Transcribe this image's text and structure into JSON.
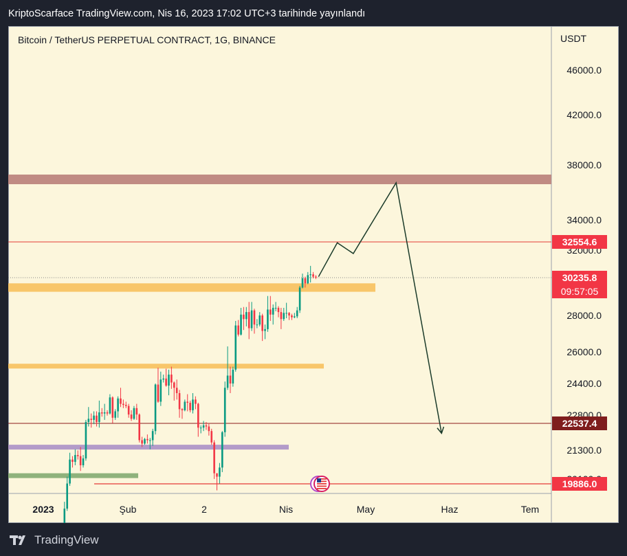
{
  "header": {
    "published": "KriptoScarface TradingView.com, Nis 16, 2023 17:02 UTC+3 tarihinde yayınlandı"
  },
  "symbol": "Bitcoin / TetherUS PERPETUAL CONTRACT, 1G, BINANCE",
  "axis_currency": "USDT",
  "footer": {
    "brand": "TradingView"
  },
  "colors": {
    "background": "#fcf6dc",
    "up": "#089981",
    "down": "#f23645",
    "resistance_zone": "#c08b83",
    "support_zone": "#f8c66a",
    "purple_zone": "#b39bc9",
    "green_zone": "#8fb27c",
    "level_line": "#e53935",
    "projection": "#1b3b2a"
  },
  "chart_data": {
    "type": "candlestick",
    "x_ticks": [
      "2023",
      "Şub",
      "2",
      "Nis",
      "May",
      "Haz",
      "Tem"
    ],
    "y_ticks": [
      46000,
      42000,
      38000,
      34000,
      32000,
      28000,
      26000,
      24400,
      22800,
      21300,
      20100
    ],
    "price_labels": [
      {
        "id": "resistance",
        "text": "32554.6",
        "value": 32554.6
      },
      {
        "id": "last",
        "text": "30235.8",
        "value": 30235.8,
        "countdown": "09:57:05"
      },
      {
        "id": "support",
        "text": "22537.4",
        "value": 22537.4
      },
      {
        "id": "low",
        "text": "19886.0",
        "value": 19886.0
      }
    ],
    "zones": [
      {
        "id": "resistance-zone",
        "from": 36600,
        "to": 37300
      },
      {
        "id": "support-zone-upper",
        "from": 29400,
        "to": 29900
      },
      {
        "id": "support-zone-lower",
        "from": 25200,
        "to": 25400
      },
      {
        "id": "purple-zone",
        "from": 21450,
        "to": 21600
      },
      {
        "id": "green-zone",
        "from": 20150,
        "to": 20350
      }
    ],
    "projection_path": [
      {
        "date": "2023-04-17",
        "price": 30300
      },
      {
        "date": "2023-04-24",
        "price": 32500
      },
      {
        "date": "2023-04-30",
        "price": 31800
      },
      {
        "date": "2023-05-16",
        "price": 36700
      },
      {
        "date": "2023-06-02",
        "price": 22100
      }
    ],
    "candles": [
      {
        "date": "2023-01-05",
        "open": 16800,
        "close": 16900,
        "high": 16950,
        "low": 16750
      },
      {
        "date": "2023-01-07",
        "open": 16900,
        "close": 17000,
        "high": 17050,
        "low": 16850
      },
      {
        "date": "2023-01-09",
        "open": 17150,
        "close": 17200,
        "high": 17300,
        "low": 17100
      },
      {
        "date": "2023-01-10",
        "open": 17200,
        "close": 17400,
        "high": 17480,
        "low": 17150
      },
      {
        "date": "2023-01-11",
        "open": 17400,
        "close": 17900,
        "high": 18000,
        "low": 17350
      },
      {
        "date": "2023-01-12",
        "open": 17900,
        "close": 18800,
        "high": 19100,
        "low": 17850
      },
      {
        "date": "2023-01-13",
        "open": 18800,
        "close": 19900,
        "high": 20200,
        "low": 18700
      },
      {
        "date": "2023-01-14",
        "open": 19900,
        "close": 20950,
        "high": 21250,
        "low": 19800
      },
      {
        "date": "2023-01-15",
        "open": 20950,
        "close": 20850,
        "high": 21100,
        "low": 20600
      },
      {
        "date": "2023-01-16",
        "open": 20850,
        "close": 21150,
        "high": 21400,
        "low": 20700
      },
      {
        "date": "2023-01-17",
        "open": 21150,
        "close": 21100,
        "high": 21350,
        "low": 20950
      },
      {
        "date": "2023-01-18",
        "open": 21100,
        "close": 20700,
        "high": 21500,
        "low": 20450
      },
      {
        "date": "2023-01-19",
        "open": 20700,
        "close": 21000,
        "high": 21150,
        "low": 20600
      },
      {
        "date": "2023-01-20",
        "open": 21000,
        "close": 22600,
        "high": 22700,
        "low": 20900
      },
      {
        "date": "2023-01-21",
        "open": 22600,
        "close": 22750,
        "high": 23300,
        "low": 22400
      },
      {
        "date": "2023-01-22",
        "open": 22750,
        "close": 22700,
        "high": 23000,
        "low": 22350
      },
      {
        "date": "2023-01-23",
        "open": 22700,
        "close": 22900,
        "high": 23100,
        "low": 22500
      },
      {
        "date": "2023-01-24",
        "open": 22900,
        "close": 22600,
        "high": 23100,
        "low": 22400
      },
      {
        "date": "2023-01-25",
        "open": 22600,
        "close": 23050,
        "high": 23600,
        "low": 22350
      },
      {
        "date": "2023-01-26",
        "open": 23050,
        "close": 23000,
        "high": 23250,
        "low": 22850
      },
      {
        "date": "2023-01-27",
        "open": 23000,
        "close": 23050,
        "high": 23450,
        "low": 22700
      },
      {
        "date": "2023-01-28",
        "open": 23050,
        "close": 23000,
        "high": 23150,
        "low": 22900
      },
      {
        "date": "2023-01-29",
        "open": 23000,
        "close": 23750,
        "high": 23900,
        "low": 22950
      },
      {
        "date": "2023-01-30",
        "open": 23750,
        "close": 22800,
        "high": 23800,
        "low": 22550
      },
      {
        "date": "2023-01-31",
        "open": 22800,
        "close": 23100,
        "high": 23200,
        "low": 22700
      },
      {
        "date": "2023-02-01",
        "open": 23100,
        "close": 23700,
        "high": 23800,
        "low": 22800
      },
      {
        "date": "2023-02-02",
        "open": 23700,
        "close": 23450,
        "high": 24200,
        "low": 23300
      },
      {
        "date": "2023-02-03",
        "open": 23450,
        "close": 23400,
        "high": 23650,
        "low": 23250
      },
      {
        "date": "2023-02-04",
        "open": 23400,
        "close": 23350,
        "high": 23550,
        "low": 23250
      },
      {
        "date": "2023-02-05",
        "open": 23350,
        "close": 22950,
        "high": 23450,
        "low": 22800
      },
      {
        "date": "2023-02-06",
        "open": 22950,
        "close": 22750,
        "high": 23150,
        "low": 22650
      },
      {
        "date": "2023-02-07",
        "open": 22750,
        "close": 23250,
        "high": 23350,
        "low": 22700
      },
      {
        "date": "2023-02-08",
        "open": 23250,
        "close": 22950,
        "high": 23450,
        "low": 22700
      },
      {
        "date": "2023-02-09",
        "open": 22950,
        "close": 21800,
        "high": 23000,
        "low": 21700
      },
      {
        "date": "2023-02-10",
        "open": 21800,
        "close": 21650,
        "high": 21950,
        "low": 21500
      },
      {
        "date": "2023-02-11",
        "open": 21650,
        "close": 21850,
        "high": 21900,
        "low": 21600
      },
      {
        "date": "2023-02-12",
        "open": 21850,
        "close": 21800,
        "high": 22050,
        "low": 21650
      },
      {
        "date": "2023-02-13",
        "open": 21800,
        "close": 21800,
        "high": 21900,
        "low": 21400
      },
      {
        "date": "2023-02-14",
        "open": 21800,
        "close": 22200,
        "high": 22300,
        "low": 21550
      },
      {
        "date": "2023-02-15",
        "open": 22200,
        "close": 24350,
        "high": 24400,
        "low": 22050
      },
      {
        "date": "2023-02-16",
        "open": 24350,
        "close": 23550,
        "high": 25200,
        "low": 23500
      },
      {
        "date": "2023-02-17",
        "open": 23550,
        "close": 24600,
        "high": 25000,
        "low": 23350
      },
      {
        "date": "2023-02-18",
        "open": 24600,
        "close": 24650,
        "high": 24850,
        "low": 24450
      },
      {
        "date": "2023-02-19",
        "open": 24650,
        "close": 24300,
        "high": 25150,
        "low": 24250
      },
      {
        "date": "2023-02-20",
        "open": 24300,
        "close": 24850,
        "high": 25100,
        "low": 23850
      },
      {
        "date": "2023-02-21",
        "open": 24850,
        "close": 24450,
        "high": 25250,
        "low": 24150
      },
      {
        "date": "2023-02-22",
        "open": 24450,
        "close": 24200,
        "high": 24500,
        "low": 23600
      },
      {
        "date": "2023-02-23",
        "open": 24200,
        "close": 23950,
        "high": 24600,
        "low": 23650
      },
      {
        "date": "2023-02-24",
        "open": 23950,
        "close": 23200,
        "high": 24100,
        "low": 22800
      },
      {
        "date": "2023-02-25",
        "open": 23200,
        "close": 23150,
        "high": 23250,
        "low": 22750
      },
      {
        "date": "2023-02-26",
        "open": 23150,
        "close": 23550,
        "high": 23650,
        "low": 23100
      },
      {
        "date": "2023-02-27",
        "open": 23550,
        "close": 23500,
        "high": 23900,
        "low": 23100
      },
      {
        "date": "2023-02-28",
        "open": 23500,
        "close": 23150,
        "high": 23600,
        "low": 23050
      },
      {
        "date": "2023-03-01",
        "open": 23150,
        "close": 23650,
        "high": 23950,
        "low": 23000
      },
      {
        "date": "2023-03-02",
        "open": 23650,
        "close": 23450,
        "high": 23800,
        "low": 23200
      },
      {
        "date": "2023-03-03",
        "open": 23450,
        "close": 22350,
        "high": 23500,
        "low": 21950
      },
      {
        "date": "2023-03-04",
        "open": 22350,
        "close": 22350,
        "high": 22450,
        "low": 22100
      },
      {
        "date": "2023-03-05",
        "open": 22350,
        "close": 22450,
        "high": 22650,
        "low": 22200
      },
      {
        "date": "2023-03-06",
        "open": 22450,
        "close": 22400,
        "high": 22600,
        "low": 22250
      },
      {
        "date": "2023-03-07",
        "open": 22400,
        "close": 22200,
        "high": 22550,
        "low": 22000
      },
      {
        "date": "2023-03-08",
        "open": 22200,
        "close": 21700,
        "high": 22300,
        "low": 21600
      },
      {
        "date": "2023-03-09",
        "open": 21700,
        "close": 20350,
        "high": 21800,
        "low": 20100
      },
      {
        "date": "2023-03-10",
        "open": 20350,
        "close": 20200,
        "high": 20350,
        "low": 19600
      },
      {
        "date": "2023-03-11",
        "open": 20200,
        "close": 20600,
        "high": 20800,
        "low": 19900
      },
      {
        "date": "2023-03-12",
        "open": 20600,
        "close": 22150,
        "high": 22200,
        "low": 20400
      },
      {
        "date": "2023-03-13",
        "open": 22150,
        "close": 24200,
        "high": 24500,
        "low": 21950
      },
      {
        "date": "2023-03-14",
        "open": 24200,
        "close": 24800,
        "high": 26300,
        "low": 24100
      },
      {
        "date": "2023-03-15",
        "open": 24800,
        "close": 24400,
        "high": 25250,
        "low": 23950
      },
      {
        "date": "2023-03-16",
        "open": 24400,
        "close": 25100,
        "high": 25250,
        "low": 24250
      },
      {
        "date": "2023-03-17",
        "open": 25100,
        "close": 27450,
        "high": 27700,
        "low": 25000
      },
      {
        "date": "2023-03-18",
        "open": 27450,
        "close": 26950,
        "high": 27750,
        "low": 26850
      },
      {
        "date": "2023-03-19",
        "open": 26950,
        "close": 28050,
        "high": 28450,
        "low": 26900
      },
      {
        "date": "2023-03-20",
        "open": 28050,
        "close": 27800,
        "high": 28500,
        "low": 27200
      },
      {
        "date": "2023-03-21",
        "open": 27800,
        "close": 28200,
        "high": 28500,
        "low": 27400
      },
      {
        "date": "2023-03-22",
        "open": 28200,
        "close": 27300,
        "high": 28800,
        "low": 26700
      },
      {
        "date": "2023-03-23",
        "open": 27300,
        "close": 28300,
        "high": 28800,
        "low": 27150
      },
      {
        "date": "2023-03-24",
        "open": 28300,
        "close": 27500,
        "high": 28400,
        "low": 27000
      },
      {
        "date": "2023-03-25",
        "open": 27500,
        "close": 27500,
        "high": 27800,
        "low": 27300
      },
      {
        "date": "2023-03-26",
        "open": 27500,
        "close": 28000,
        "high": 28200,
        "low": 27400
      },
      {
        "date": "2023-03-27",
        "open": 28000,
        "close": 27150,
        "high": 28100,
        "low": 26600
      },
      {
        "date": "2023-03-28",
        "open": 27150,
        "close": 27250,
        "high": 27500,
        "low": 26700
      },
      {
        "date": "2023-03-29",
        "open": 27250,
        "close": 28350,
        "high": 29150,
        "low": 27100
      },
      {
        "date": "2023-03-30",
        "open": 28350,
        "close": 28050,
        "high": 29150,
        "low": 27700
      },
      {
        "date": "2023-03-31",
        "open": 28050,
        "close": 28450,
        "high": 28650,
        "low": 27500
      },
      {
        "date": "2023-04-01",
        "open": 28450,
        "close": 28450,
        "high": 28800,
        "low": 28250
      },
      {
        "date": "2023-04-02",
        "open": 28450,
        "close": 28200,
        "high": 28550,
        "low": 27900
      },
      {
        "date": "2023-04-03",
        "open": 28200,
        "close": 27800,
        "high": 28450,
        "low": 27250
      },
      {
        "date": "2023-04-04",
        "open": 27800,
        "close": 28150,
        "high": 28450,
        "low": 27700
      },
      {
        "date": "2023-04-05",
        "open": 28150,
        "close": 28150,
        "high": 28750,
        "low": 27850
      },
      {
        "date": "2023-04-06",
        "open": 28150,
        "close": 28000,
        "high": 28200,
        "low": 27750
      },
      {
        "date": "2023-04-07",
        "open": 28000,
        "close": 27900,
        "high": 28100,
        "low": 27750
      },
      {
        "date": "2023-04-08",
        "open": 27900,
        "close": 27950,
        "high": 28150,
        "low": 27850
      },
      {
        "date": "2023-04-09",
        "open": 27950,
        "close": 28300,
        "high": 28500,
        "low": 27850
      },
      {
        "date": "2023-04-10",
        "open": 28300,
        "close": 29650,
        "high": 29750,
        "low": 28150
      },
      {
        "date": "2023-04-11",
        "open": 29650,
        "close": 30200,
        "high": 30500,
        "low": 29600
      },
      {
        "date": "2023-04-12",
        "open": 30200,
        "close": 29900,
        "high": 30300,
        "low": 29650
      },
      {
        "date": "2023-04-13",
        "open": 29900,
        "close": 30400,
        "high": 30600,
        "low": 29850
      },
      {
        "date": "2023-04-14",
        "open": 30400,
        "close": 30450,
        "high": 31000,
        "low": 29950
      },
      {
        "date": "2023-04-15",
        "open": 30450,
        "close": 30300,
        "high": 30600,
        "low": 30200
      },
      {
        "date": "2023-04-16",
        "open": 30300,
        "close": 30235.8,
        "high": 30400,
        "low": 30150
      }
    ]
  }
}
